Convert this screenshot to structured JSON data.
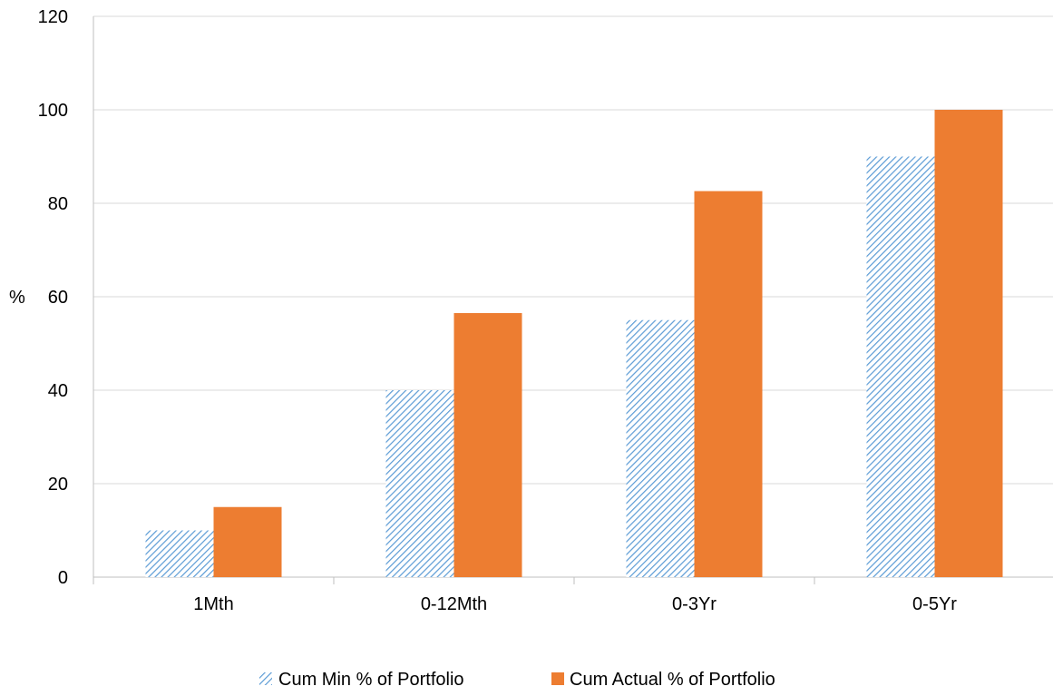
{
  "chart_data": {
    "type": "bar",
    "categories": [
      "1Mth",
      "0-12Mth",
      "0-3Yr",
      "0-5Yr"
    ],
    "series": [
      {
        "name": "Cum Min % of Portfolio",
        "values": [
          10,
          40,
          55,
          90
        ],
        "color": "#5B9BD5",
        "pattern": "diagonal-hatch"
      },
      {
        "name": "Cum Actual % of Portfolio",
        "values": [
          15,
          56.5,
          82.6,
          100
        ],
        "color": "#ED7D31",
        "pattern": "solid"
      }
    ],
    "title": "",
    "xlabel": "",
    "ylabel": "%",
    "ylim": [
      0,
      120
    ],
    "yticks": [
      0,
      20,
      40,
      60,
      80,
      100,
      120
    ],
    "grid": true,
    "legend_position": "bottom",
    "colors": {
      "gridline": "#D9D9D9",
      "axis": "#BFBFBF"
    }
  }
}
